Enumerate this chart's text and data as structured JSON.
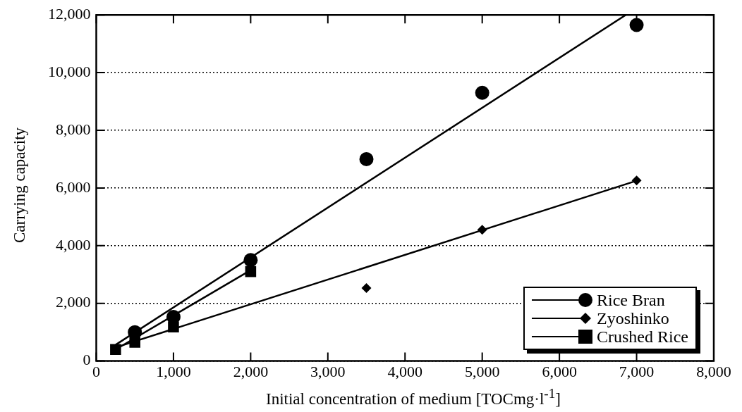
{
  "chart_data": {
    "type": "scatter",
    "xlabel": "Initial concentration of medium [TOCmg·l$^{-1}$]",
    "ylabel": "Carrying capacity",
    "xlim": [
      0,
      8000
    ],
    "xticks": [
      {
        "value": 0,
        "label": "0"
      },
      {
        "value": 1000,
        "label": "1,000"
      },
      {
        "value": 2000,
        "label": "2,000"
      },
      {
        "value": 3000,
        "label": "3,000"
      },
      {
        "value": 4000,
        "label": "4,000"
      },
      {
        "value": 5000,
        "label": "5,000"
      },
      {
        "value": 6000,
        "label": "6,000"
      },
      {
        "value": 7000,
        "label": "7,000"
      },
      {
        "value": 8000,
        "label": "8,000"
      }
    ],
    "ylim": [
      0,
      12000
    ],
    "yticks": [
      {
        "value": 0,
        "label": "0"
      },
      {
        "value": 2000,
        "label": "2,000"
      },
      {
        "value": 4000,
        "label": "4,000"
      },
      {
        "value": 6000,
        "label": "6,000"
      },
      {
        "value": 8000,
        "label": "8,000"
      },
      {
        "value": 10000,
        "label": "10,000"
      },
      {
        "value": 12000,
        "label": "12,000"
      }
    ],
    "grid": "y",
    "legend": "bottom right",
    "series": [
      {
        "name": "Rice Bran",
        "color": "#000000",
        "marker": "circle",
        "x": [
          500,
          1000,
          2000,
          3500,
          5000,
          7000
        ],
        "values": [
          1000,
          1530,
          3500,
          7000,
          9300,
          11650
        ]
      },
      {
        "name": "Zyoshinko",
        "color": "#000000",
        "marker": "diamond",
        "x": [
          3500,
          5000,
          7000
        ],
        "values": [
          2530,
          4550,
          6260
        ]
      },
      {
        "name": "Crushed Rice",
        "color": "#000000",
        "marker": "square",
        "x": [
          250,
          500,
          1000,
          2000
        ],
        "values": [
          400,
          650,
          1180,
          3100
        ]
      },
      {
        "type": "line",
        "color": "#000000",
        "marker": "none",
        "x": [
          250,
          6860
        ],
        "values": [
          560,
          12000
        ]
      },
      {
        "type": "line",
        "color": "#000000",
        "marker": "none",
        "x": [
          250,
          7000
        ],
        "values": [
          470,
          6250
        ]
      },
      {
        "type": "line",
        "color": "#000000",
        "marker": "none",
        "x": [
          250,
          2000
        ],
        "values": [
          400,
          3150
        ]
      }
    ]
  }
}
